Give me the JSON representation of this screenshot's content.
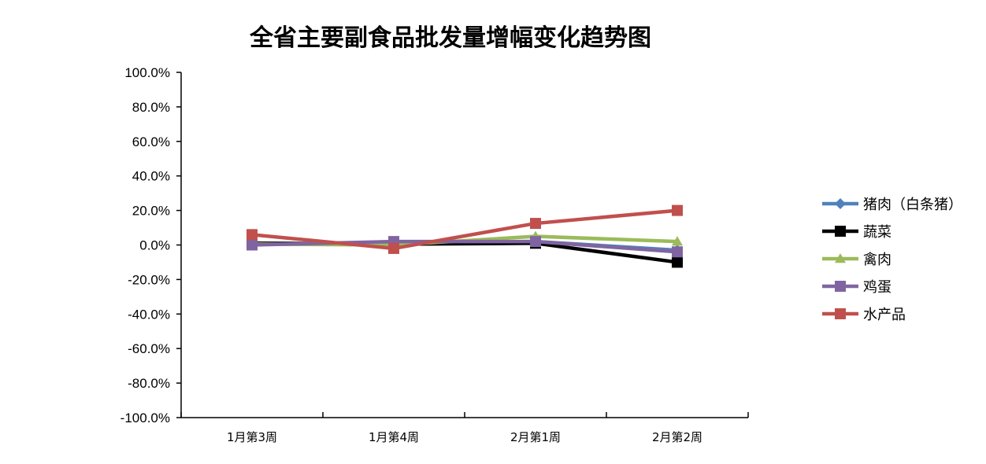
{
  "chart_data": {
    "type": "line",
    "title": "全省主要副食品批发量增幅变化趋势图",
    "categories": [
      "1月第3周",
      "1月第4周",
      "2月第1周",
      "2月第2周"
    ],
    "ylim": [
      -100,
      100
    ],
    "ytick_step": 20,
    "ytick_labels": [
      "100.0%",
      "80.0%",
      "60.0%",
      "40.0%",
      "20.0%",
      "0.0%",
      "-20.0%",
      "-40.0%",
      "-60.0%",
      "-80.0%",
      "-100.0%"
    ],
    "grid": false,
    "legend_position": "right",
    "series": [
      {
        "name": "猪肉（白条猪）",
        "values": [
          0.5,
          1.5,
          2.0,
          -3.0
        ],
        "color": "#4F81BD",
        "marker": "diamond"
      },
      {
        "name": "蔬菜",
        "values": [
          1.0,
          0.5,
          1.0,
          -10.0
        ],
        "color": "#000000",
        "marker": "square"
      },
      {
        "name": "禽肉",
        "values": [
          0.5,
          0.0,
          5.0,
          2.0
        ],
        "color": "#9BBB59",
        "marker": "triangle"
      },
      {
        "name": "鸡蛋",
        "values": [
          0.0,
          2.0,
          2.0,
          -4.0
        ],
        "color": "#8064A2",
        "marker": "square"
      },
      {
        "name": "水产品",
        "values": [
          6.0,
          -2.0,
          12.5,
          20.0
        ],
        "color": "#C0504D",
        "marker": "square"
      }
    ]
  }
}
